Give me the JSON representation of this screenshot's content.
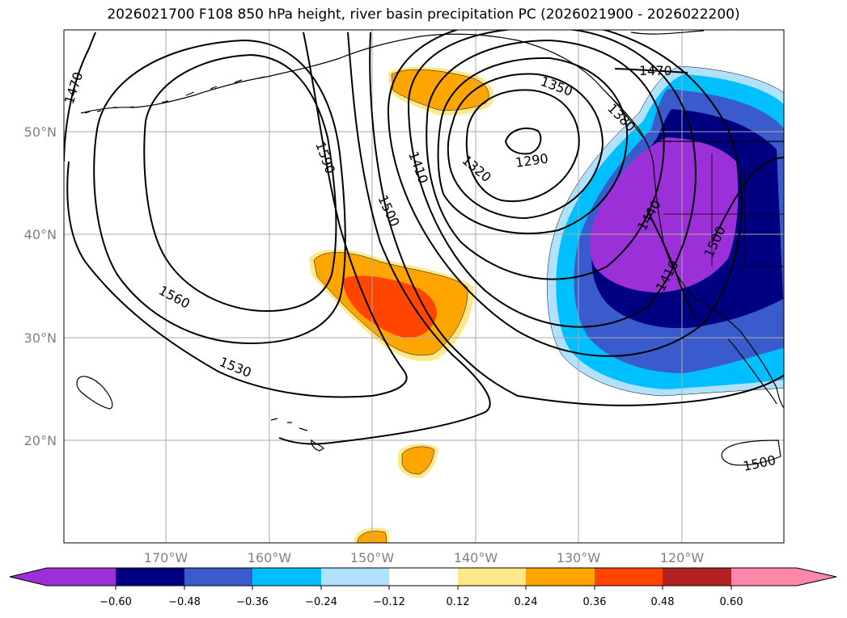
{
  "title": "2026021700 F108 850 hPa height, river basin precipitation PC (2026021900 - 2026022200)",
  "latitude_labels": [
    "50°N",
    "40°N",
    "30°N",
    "20°N"
  ],
  "longitude_labels": [
    "170°W",
    "160°W",
    "150°W",
    "140°W",
    "130°W",
    "120°W"
  ],
  "contour_labels": [
    "1470",
    "1590",
    "1410",
    "1350",
    "1380",
    "1320",
    "1290",
    "1500",
    "1560",
    "1530",
    "1440",
    "1410",
    "1500",
    "1470",
    "1500"
  ],
  "colorbar": {
    "tick_labels": [
      "−0.60",
      "−0.48",
      "−0.36",
      "−0.24",
      "−0.12",
      "0.12",
      "0.24",
      "0.36",
      "0.48",
      "0.60"
    ],
    "colors": [
      "#9b30d9",
      "#000080",
      "#3a5bcc",
      "#00bfff",
      "#b0e2ff",
      "#ffffff",
      "#ffe88a",
      "#ffa500",
      "#ff4500",
      "#b22222",
      "#ff88aa"
    ]
  },
  "fill_colors": {
    "light_blue": "#b0e2ff",
    "sky": "#00bfff",
    "royal": "#3a5bcc",
    "navy": "#000080",
    "purple": "#9b30d9",
    "yellow": "#ffe88a",
    "orange": "#ffa500",
    "red_orange": "#ff4500"
  }
}
